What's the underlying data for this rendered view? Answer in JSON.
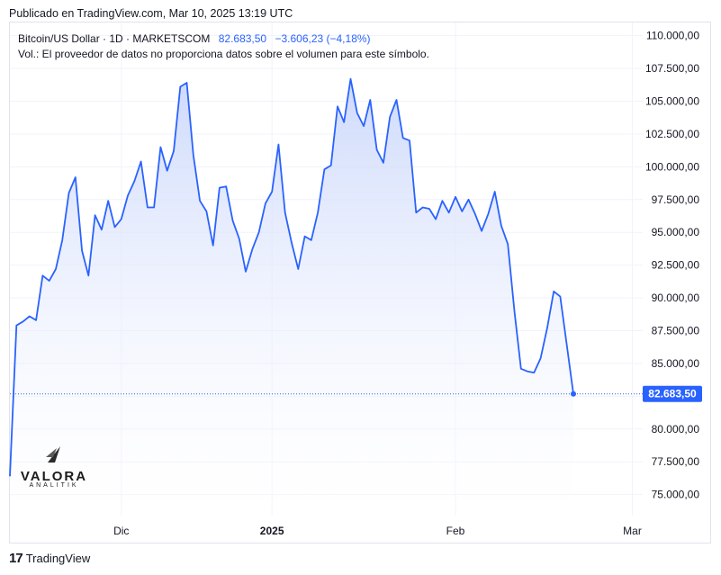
{
  "header": {
    "published": "Publicado en TradingView.com, Mar 10, 2025 13:19 UTC"
  },
  "legend": {
    "symbol": "Bitcoin/US Dollar · 1D · MARKETSCOM",
    "price": "82.683,50",
    "change": "−3.606,23 (−4,18%)",
    "volume_note": "Vol.: El proveedor de datos no proporciona datos sobre el volumen para este símbolo."
  },
  "watermark": {
    "name": "VALORA",
    "sub": "ANALITIK"
  },
  "footer": {
    "brand": "TradingView"
  },
  "colors": {
    "line": "#2962ff",
    "fill_top": "#c9d6fb",
    "fill_bottom": "#ffffff",
    "grid": "#f0f3fa",
    "price_tag": "#2962ff"
  },
  "chart_data": {
    "type": "area",
    "x_ticks": [
      {
        "label": "Dic",
        "index": 17
      },
      {
        "label": "2025",
        "index": 40
      },
      {
        "label": "Feb",
        "index": 68
      },
      {
        "label": "Mar",
        "index": 95
      }
    ],
    "y_ticks": [
      "75.000,00",
      "77.500,00",
      "80.000,00",
      "82.500,00",
      "85.000,00",
      "87.500,00",
      "90.000,00",
      "92.500,00",
      "95.000,00",
      "97.500,00",
      "100.000,00",
      "102.500,00",
      "105.000,00",
      "107.500,00",
      "110.000,00"
    ],
    "y_tick_values": [
      75000,
      77500,
      80000,
      82500,
      85000,
      87500,
      90000,
      92500,
      95000,
      97500,
      100000,
      102500,
      105000,
      107500,
      110000
    ],
    "ylim": [
      73400,
      111000
    ],
    "last_value": 82683.5,
    "last_label": "82.683,50",
    "values": [
      76400,
      87900,
      88200,
      88600,
      88300,
      91700,
      91300,
      92200,
      94400,
      98000,
      99200,
      93600,
      91700,
      96300,
      95200,
      97400,
      95400,
      96000,
      97800,
      98900,
      100400,
      96900,
      96900,
      101500,
      99700,
      101200,
      106100,
      106400,
      100900,
      97400,
      96600,
      94000,
      98400,
      98500,
      95900,
      94500,
      92000,
      93700,
      95000,
      97200,
      98100,
      101700,
      96500,
      94200,
      92200,
      94700,
      94400,
      96500,
      99800,
      100100,
      104600,
      103400,
      106700,
      104100,
      103100,
      105100,
      101300,
      100300,
      103800,
      105100,
      102200,
      102000,
      96500,
      96900,
      96800,
      96000,
      97400,
      96500,
      97700,
      96600,
      97500,
      96400,
      95100,
      96400,
      98100,
      95500,
      94100,
      89000,
      84600,
      84400,
      84300,
      85400,
      87700,
      90500,
      90100,
      86400,
      82683.5
    ]
  }
}
